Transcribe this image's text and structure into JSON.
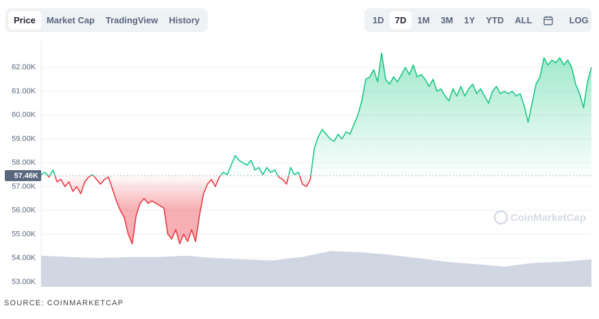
{
  "chart_data": {
    "type": "line",
    "tabs": [
      "Price",
      "Market Cap",
      "TradingView",
      "History"
    ],
    "active_tab": 0,
    "ranges": [
      "1D",
      "7D",
      "1M",
      "3M",
      "1Y",
      "YTD",
      "ALL"
    ],
    "active_range": 1,
    "log_label": "LOG",
    "watermark": "CoinMarketCap",
    "source": "SOURCE: COINMARKETCAP",
    "ylim": [
      52800,
      63100
    ],
    "yticks": [
      {
        "value": 53000,
        "label": "53.00K"
      },
      {
        "value": 54000,
        "label": "54.00K"
      },
      {
        "value": 55000,
        "label": "55.00K"
      },
      {
        "value": 56000,
        "label": "56.00K"
      },
      {
        "value": 57000,
        "label": "57.00K"
      },
      {
        "value": 58000,
        "label": "58.00K"
      },
      {
        "value": 59000,
        "label": "59.00K"
      },
      {
        "value": 60000,
        "label": "60.00K"
      },
      {
        "value": 61000,
        "label": "61.00K"
      },
      {
        "value": 62000,
        "label": "62.00K"
      }
    ],
    "grid": true,
    "baseline": {
      "value": 57460,
      "label": "57.46K"
    },
    "up_color": "#16c784",
    "down_color": "#ea3943",
    "values": [
      57500,
      57600,
      57400,
      57700,
      57200,
      57300,
      57000,
      57200,
      56800,
      57000,
      56700,
      57200,
      57400,
      57500,
      57300,
      57100,
      57300,
      57400,
      56900,
      56400,
      56000,
      55700,
      55000,
      54600,
      55800,
      56300,
      56500,
      56300,
      56400,
      56300,
      56200,
      56100,
      55000,
      54800,
      55200,
      54600,
      55000,
      54700,
      55200,
      54700,
      55800,
      56700,
      57100,
      57300,
      57000,
      57400,
      57600,
      57500,
      57900,
      58300,
      58100,
      58000,
      57900,
      58100,
      57700,
      57800,
      57500,
      57800,
      57600,
      57700,
      57400,
      57300,
      57100,
      57800,
      57500,
      57600,
      57100,
      57000,
      57300,
      58600,
      59100,
      59400,
      59200,
      59000,
      58900,
      59200,
      59000,
      59300,
      59200,
      59600,
      60000,
      60600,
      61500,
      61600,
      61900,
      61400,
      62600,
      61500,
      61300,
      61600,
      61400,
      61700,
      62000,
      61700,
      62100,
      61600,
      61700,
      61500,
      61200,
      61500,
      61000,
      61100,
      60800,
      60600,
      61100,
      60800,
      61200,
      60800,
      61100,
      61300,
      60900,
      61100,
      60800,
      60500,
      61000,
      61200,
      60900,
      61000,
      60900,
      61000,
      60800,
      60900,
      60400,
      59700,
      60500,
      61300,
      61600,
      62400,
      62100,
      62300,
      62200,
      62400,
      62100,
      62300,
      62000,
      61300,
      60900,
      60300,
      61400,
      62000
    ],
    "volume_color": "#d1d6e3",
    "volume_values": [
      54100,
      54050,
      54000,
      54050,
      54050,
      54100,
      54000,
      53950,
      53900,
      54050,
      54300,
      54250,
      54150,
      54000,
      53850,
      53750,
      53650,
      53800,
      53850,
      53950
    ]
  }
}
